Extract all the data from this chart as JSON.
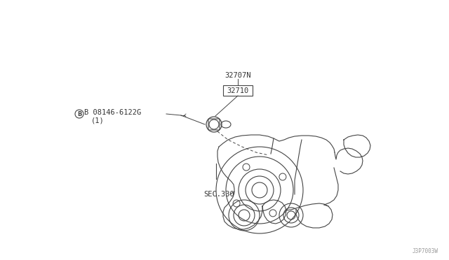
{
  "bg_color": "#ffffff",
  "line_color": "#444444",
  "text_color": "#333333",
  "watermark": "J3P7003W",
  "label_32707N": "32707N",
  "label_32710": "32710",
  "label_08146": "B 08146-6122G",
  "label_1": "(1)",
  "label_sec330": "SEC.330",
  "font_size": 7.5
}
